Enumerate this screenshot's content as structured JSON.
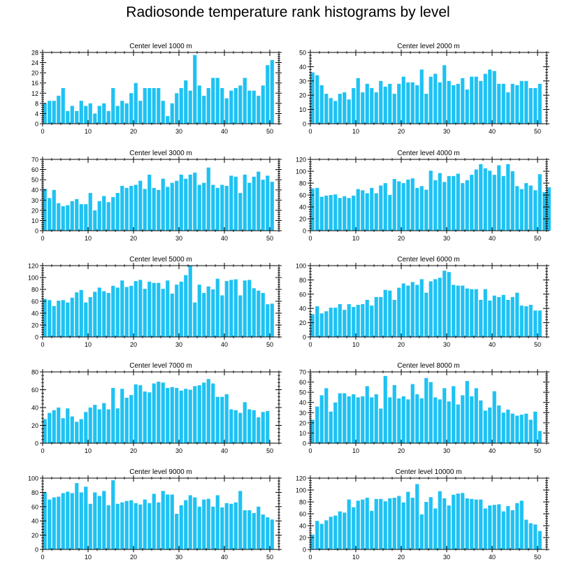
{
  "title": "Radiosonde temperature rank histograms by level",
  "colors": {
    "bar": "#1ec2f3",
    "axis": "#000000",
    "background": "#ffffff"
  },
  "chart_data": [
    {
      "type": "bar",
      "title": "Center level 1000 m",
      "xlim": [
        0,
        52
      ],
      "ylim": [
        0,
        28
      ],
      "yticks": [
        0,
        4,
        8,
        12,
        16,
        20,
        24,
        28
      ],
      "xticks": [
        0,
        10,
        20,
        30,
        40,
        50
      ],
      "values": [
        8,
        9,
        9,
        11,
        14,
        5,
        7,
        5,
        9,
        7,
        8,
        4,
        7,
        8,
        5,
        14,
        7,
        9,
        8,
        12,
        16,
        9,
        14,
        14,
        14,
        14,
        9,
        3,
        8,
        12,
        14,
        17,
        13,
        27,
        15,
        11,
        14,
        18,
        18,
        14,
        10,
        13,
        14,
        15,
        18,
        13,
        13,
        11,
        15,
        23,
        25
      ]
    },
    {
      "type": "bar",
      "title": "Center level 2000 m",
      "xlim": [
        0,
        52
      ],
      "ylim": [
        0,
        50
      ],
      "yticks": [
        0,
        10,
        20,
        30,
        40,
        50
      ],
      "xticks": [
        0,
        10,
        20,
        30,
        40,
        50
      ],
      "values": [
        36,
        34,
        27,
        21,
        18,
        16,
        21,
        22,
        17,
        25,
        32,
        22,
        28,
        25,
        22,
        30,
        26,
        28,
        21,
        28,
        33,
        29,
        29,
        27,
        38,
        21,
        33,
        35,
        29,
        41,
        30,
        27,
        28,
        32,
        24,
        33,
        33,
        30,
        35,
        38,
        37,
        28,
        28,
        22,
        28,
        27,
        30,
        30,
        25,
        25,
        28
      ]
    },
    {
      "type": "bar",
      "title": "Center level 3000 m",
      "xlim": [
        0,
        52
      ],
      "ylim": [
        0,
        70
      ],
      "yticks": [
        0,
        10,
        20,
        30,
        40,
        50,
        60,
        70
      ],
      "xticks": [
        0,
        10,
        20,
        30,
        40,
        50
      ],
      "values": [
        41,
        32,
        40,
        27,
        24,
        25,
        29,
        31,
        26,
        26,
        37,
        20,
        29,
        34,
        28,
        33,
        37,
        44,
        42,
        44,
        45,
        49,
        41,
        55,
        42,
        40,
        51,
        43,
        47,
        49,
        55,
        51,
        55,
        57,
        45,
        47,
        62,
        45,
        42,
        45,
        44,
        54,
        53,
        37,
        55,
        47,
        53,
        58,
        50,
        54,
        48
      ]
    },
    {
      "type": "bar",
      "title": "Center level 4000 m",
      "xlim": [
        0,
        52
      ],
      "ylim": [
        0,
        120
      ],
      "yticks": [
        0,
        20,
        40,
        60,
        80,
        100,
        120
      ],
      "xticks": [
        0,
        10,
        20,
        30,
        40,
        50
      ],
      "values": [
        71,
        72,
        57,
        59,
        60,
        61,
        55,
        58,
        55,
        59,
        70,
        68,
        63,
        72,
        63,
        76,
        80,
        60,
        87,
        83,
        80,
        86,
        88,
        72,
        75,
        69,
        101,
        85,
        97,
        82,
        92,
        92,
        96,
        80,
        85,
        94,
        103,
        112,
        105,
        101,
        94,
        110,
        92,
        112,
        100,
        75,
        70,
        80,
        76,
        68,
        95,
        65,
        73
      ]
    },
    {
      "type": "bar",
      "title": "Center level 5000 m",
      "xlim": [
        0,
        52
      ],
      "ylim": [
        0,
        120
      ],
      "yticks": [
        0,
        20,
        40,
        60,
        80,
        100,
        120
      ],
      "xticks": [
        0,
        10,
        20,
        30,
        40,
        50
      ],
      "values": [
        64,
        62,
        52,
        61,
        62,
        58,
        66,
        75,
        79,
        58,
        67,
        76,
        83,
        77,
        74,
        86,
        83,
        95,
        84,
        86,
        94,
        96,
        81,
        93,
        91,
        91,
        81,
        95,
        73,
        88,
        93,
        104,
        120,
        58,
        88,
        74,
        85,
        80,
        98,
        70,
        94,
        96,
        97,
        70,
        95,
        96,
        82,
        78,
        74,
        55,
        56
      ]
    },
    {
      "type": "bar",
      "title": "Center level 6000 m",
      "xlim": [
        0,
        52
      ],
      "ylim": [
        0,
        100
      ],
      "yticks": [
        0,
        20,
        40,
        60,
        80,
        100
      ],
      "xticks": [
        0,
        10,
        20,
        30,
        40,
        50
      ],
      "values": [
        32,
        43,
        33,
        36,
        41,
        41,
        46,
        38,
        46,
        42,
        45,
        46,
        52,
        44,
        56,
        56,
        66,
        65,
        52,
        69,
        75,
        72,
        77,
        73,
        81,
        62,
        78,
        81,
        83,
        93,
        91,
        73,
        72,
        72,
        68,
        67,
        67,
        52,
        67,
        51,
        58,
        56,
        59,
        52,
        56,
        62,
        44,
        43,
        45,
        37,
        37
      ]
    },
    {
      "type": "bar",
      "title": "Center level 7000 m",
      "xlim": [
        0,
        52
      ],
      "ylim": [
        0,
        80
      ],
      "yticks": [
        0,
        20,
        40,
        60,
        80
      ],
      "xticks": [
        0,
        10,
        20,
        30,
        40,
        50
      ],
      "values": [
        27,
        34,
        37,
        40,
        28,
        39,
        30,
        24,
        27,
        35,
        40,
        43,
        38,
        45,
        38,
        62,
        39,
        61,
        51,
        54,
        66,
        65,
        58,
        57,
        67,
        69,
        68,
        62,
        63,
        62,
        59,
        61,
        60,
        64,
        65,
        68,
        72,
        67,
        52,
        52,
        55,
        38,
        37,
        34,
        46,
        38,
        37,
        29,
        35,
        36
      ]
    },
    {
      "type": "bar",
      "title": "Center level 8000 m",
      "xlim": [
        0,
        52
      ],
      "ylim": [
        0,
        70
      ],
      "yticks": [
        0,
        10,
        20,
        30,
        40,
        50,
        60,
        70
      ],
      "xticks": [
        0,
        10,
        20,
        30,
        40,
        50
      ],
      "values": [
        23,
        36,
        47,
        54,
        31,
        40,
        49,
        49,
        46,
        48,
        45,
        46,
        56,
        45,
        48,
        34,
        66,
        45,
        57,
        44,
        46,
        43,
        58,
        48,
        44,
        64,
        60,
        45,
        43,
        54,
        41,
        56,
        38,
        47,
        61,
        46,
        54,
        42,
        32,
        35,
        51,
        37,
        30,
        33,
        29,
        27,
        28,
        29,
        23,
        31,
        12
      ]
    },
    {
      "type": "bar",
      "title": "Center level 9000 m",
      "xlim": [
        0,
        52
      ],
      "ylim": [
        0,
        100
      ],
      "yticks": [
        0,
        20,
        40,
        60,
        80,
        100
      ],
      "xticks": [
        0,
        10,
        20,
        30,
        40,
        50
      ],
      "values": [
        80,
        70,
        73,
        74,
        79,
        81,
        79,
        93,
        80,
        88,
        64,
        80,
        75,
        82,
        62,
        97,
        64,
        66,
        68,
        69,
        65,
        63,
        70,
        65,
        78,
        66,
        82,
        77,
        77,
        50,
        62,
        69,
        76,
        73,
        60,
        70,
        71,
        60,
        76,
        59,
        65,
        64,
        66,
        82,
        55,
        55,
        51,
        60,
        49,
        45,
        42
      ]
    },
    {
      "type": "bar",
      "title": "Center level 10000 m",
      "xlim": [
        0,
        52
      ],
      "ylim": [
        0,
        120
      ],
      "yticks": [
        0,
        20,
        40,
        60,
        80,
        100,
        120
      ],
      "xticks": [
        0,
        10,
        20,
        30,
        40,
        50
      ],
      "values": [
        25,
        48,
        43,
        49,
        55,
        57,
        64,
        62,
        84,
        71,
        82,
        84,
        87,
        65,
        85,
        85,
        81,
        86,
        87,
        90,
        79,
        97,
        87,
        110,
        59,
        80,
        88,
        69,
        98,
        86,
        74,
        92,
        94,
        95,
        86,
        85,
        84,
        84,
        69,
        74,
        75,
        76,
        64,
        73,
        66,
        78,
        82,
        50,
        44,
        42,
        31
      ]
    }
  ]
}
